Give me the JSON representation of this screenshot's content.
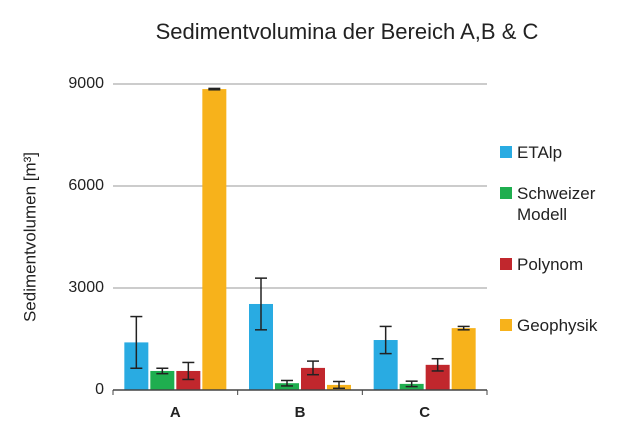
{
  "chart_data": {
    "type": "bar",
    "title": "Sedimentvolumina der Bereich A,B & C",
    "y_label": "Sedimentvolumen [m³]",
    "categories": [
      "A",
      "B",
      "C"
    ],
    "series": [
      {
        "name": "ETAlp",
        "color": "#29abe2",
        "values": [
          1400,
          2530,
          1470
        ],
        "errors": [
          760,
          760,
          400
        ]
      },
      {
        "name": "Schweizer Modell",
        "color": "#1fae4f",
        "values": [
          560,
          200,
          180
        ],
        "errors": [
          80,
          80,
          80
        ]
      },
      {
        "name": "Polynom",
        "color": "#c1272d",
        "values": [
          560,
          650,
          740
        ],
        "errors": [
          250,
          200,
          180
        ]
      },
      {
        "name": "Geophysik",
        "color": "#f7b21b",
        "values": [
          8850,
          150,
          1820
        ],
        "errors": [
          20,
          100,
          50
        ]
      }
    ],
    "ylim": [
      0,
      10000
    ],
    "yticks": [
      0,
      3000,
      6000,
      9000
    ],
    "grid": true
  }
}
